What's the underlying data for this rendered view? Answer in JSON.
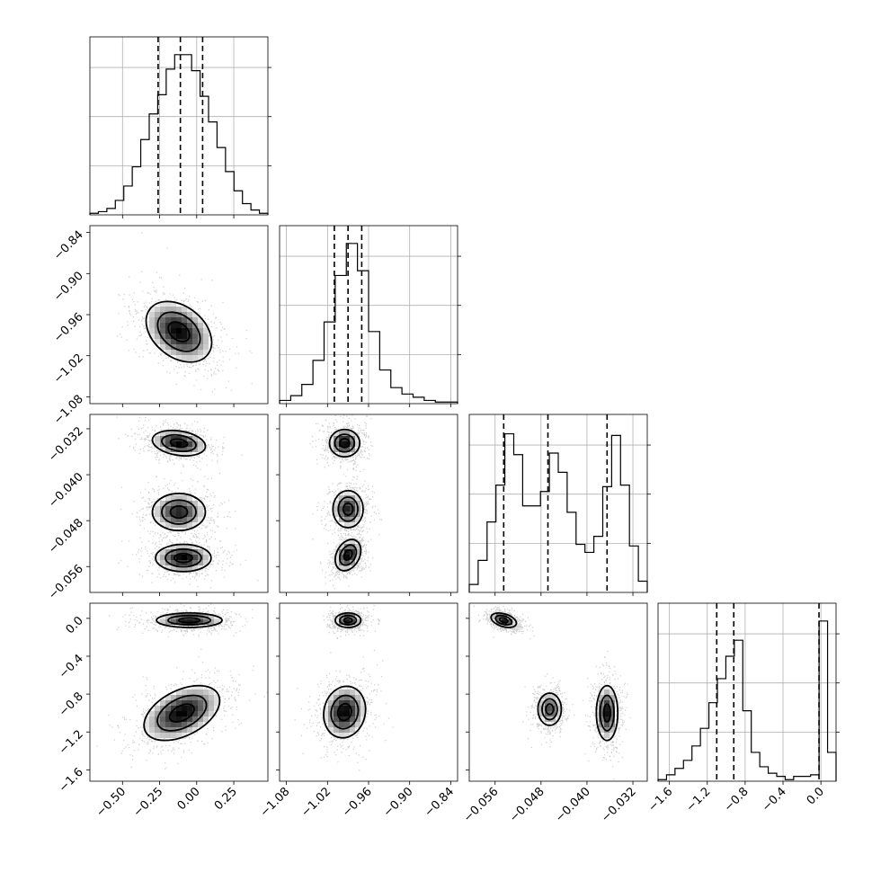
{
  "chart_data": {
    "type": "corner",
    "grid": true,
    "axis_labels": [
      "",
      "",
      "",
      ""
    ],
    "params": [
      {
        "range": [
          -0.72,
          0.48
        ],
        "ticks": [
          -0.5,
          -0.25,
          0.0,
          0.25
        ],
        "tick_labels": [
          "−0.50",
          "−0.25",
          "0.00",
          "0.25"
        ],
        "quantiles": [
          -0.26,
          -0.11,
          0.04
        ],
        "hist": [
          0.01,
          0.02,
          0.04,
          0.09,
          0.18,
          0.3,
          0.47,
          0.63,
          0.75,
          0.91,
          1.0,
          1.0,
          0.9,
          0.74,
          0.58,
          0.42,
          0.27,
          0.15,
          0.07,
          0.03,
          0.01
        ]
      },
      {
        "range": [
          -1.09,
          -0.83
        ],
        "ticks": [
          -1.08,
          -1.02,
          -0.96,
          -0.9,
          -0.84
        ],
        "tick_labels": [
          "−1.08",
          "−1.02",
          "−0.96",
          "−0.90",
          "−0.84"
        ],
        "quantiles": [
          -1.01,
          -0.99,
          -0.97
        ],
        "hist": [
          0.02,
          0.05,
          0.12,
          0.27,
          0.51,
          0.8,
          1.0,
          0.83,
          0.45,
          0.21,
          0.1,
          0.06,
          0.04,
          0.02,
          0.01,
          0.01
        ]
      },
      {
        "range": [
          -0.0605,
          -0.0295
        ],
        "ticks": [
          -0.056,
          -0.048,
          -0.04,
          -0.032
        ],
        "tick_labels": [
          "−0.056",
          "−0.048",
          "−0.040",
          "−0.032"
        ],
        "quantiles": [
          -0.0545,
          -0.0468,
          -0.0365
        ],
        "hist": [
          0.05,
          0.2,
          0.44,
          0.67,
          0.99,
          0.86,
          0.54,
          0.54,
          0.63,
          0.87,
          0.75,
          0.5,
          0.3,
          0.25,
          0.35,
          0.66,
          0.98,
          0.67,
          0.29,
          0.07
        ]
      },
      {
        "range": [
          -1.72,
          0.16
        ],
        "ticks": [
          -1.6,
          -1.2,
          -0.8,
          -0.4,
          0.0
        ],
        "tick_labels": [
          "−1.6",
          "−1.2",
          "−0.8",
          "−0.4",
          "0.0"
        ],
        "quantiles": [
          -1.1,
          -0.92,
          -0.02
        ],
        "hist": [
          0.01,
          0.04,
          0.08,
          0.13,
          0.22,
          0.33,
          0.49,
          0.64,
          0.78,
          0.88,
          0.44,
          0.18,
          0.09,
          0.05,
          0.03,
          0.01,
          0.03,
          0.03,
          0.04,
          1.0,
          0.18
        ]
      }
    ],
    "pairs": [
      {
        "x": 0,
        "y": 1,
        "blobs": [
          {
            "cx": -0.12,
            "cy": -0.985,
            "sx": 0.13,
            "sy": 0.026,
            "rho": -0.35,
            "w": 1.0
          }
        ]
      },
      {
        "x": 0,
        "y": 2,
        "blobs": [
          {
            "cx": -0.12,
            "cy": -0.0345,
            "sx": 0.105,
            "sy": 0.0013,
            "rho": -0.25,
            "w": 1.0
          },
          {
            "cx": -0.12,
            "cy": -0.0465,
            "sx": 0.105,
            "sy": 0.0019,
            "rho": 0.0,
            "w": 0.9
          },
          {
            "cx": -0.09,
            "cy": -0.0545,
            "sx": 0.11,
            "sy": 0.0014,
            "rho": 0.0,
            "w": 1.0
          }
        ]
      },
      {
        "x": 0,
        "y": 3,
        "blobs": [
          {
            "cx": -0.05,
            "cy": -0.02,
            "sx": 0.13,
            "sy": 0.045,
            "rho": 0.0,
            "w": 1.0
          },
          {
            "cx": -0.1,
            "cy": -1.0,
            "sx": 0.15,
            "sy": 0.17,
            "rho": 0.45,
            "w": 1.0
          }
        ]
      },
      {
        "x": 1,
        "y": 2,
        "blobs": [
          {
            "cx": -0.995,
            "cy": -0.0345,
            "sx": 0.013,
            "sy": 0.0014,
            "rho": 0.0,
            "w": 1.0
          },
          {
            "cx": -0.99,
            "cy": -0.046,
            "sx": 0.013,
            "sy": 0.0019,
            "rho": 0.0,
            "w": 0.9
          },
          {
            "cx": -0.99,
            "cy": -0.054,
            "sx": 0.011,
            "sy": 0.0016,
            "rho": 0.3,
            "w": 1.0
          }
        ]
      },
      {
        "x": 1,
        "y": 3,
        "blobs": [
          {
            "cx": -0.99,
            "cy": -0.02,
            "sx": 0.011,
            "sy": 0.045,
            "rho": 0.0,
            "w": 1.0
          },
          {
            "cx": -0.995,
            "cy": -0.99,
            "sx": 0.018,
            "sy": 0.16,
            "rho": 0.1,
            "w": 1.0
          }
        ]
      },
      {
        "x": 2,
        "y": 3,
        "blobs": [
          {
            "cx": -0.0545,
            "cy": -0.02,
            "sx": 0.0013,
            "sy": 0.045,
            "rho": -0.4,
            "w": 1.0
          },
          {
            "cx": -0.0465,
            "cy": -0.96,
            "sx": 0.0012,
            "sy": 0.1,
            "rho": 0.0,
            "w": 0.8
          },
          {
            "cx": -0.0365,
            "cy": -1.0,
            "sx": 0.0011,
            "sy": 0.17,
            "rho": 0.0,
            "w": 0.95
          }
        ]
      }
    ]
  }
}
